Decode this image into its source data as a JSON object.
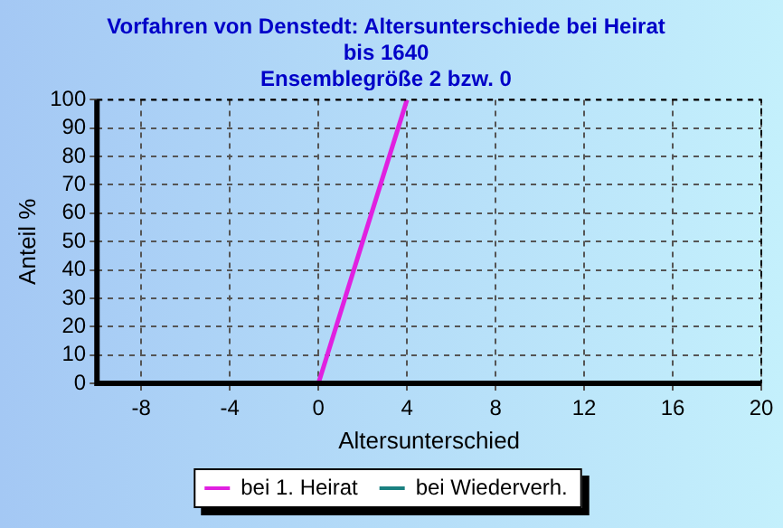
{
  "chart_data": {
    "type": "line",
    "title": "Vorfahren von Denstedt: Altersunterschiede bei Heirat",
    "subtitle": "bis 1640\nEnsemblegröße 2 bzw. 0",
    "xlabel": "Altersunterschied",
    "ylabel": "Anteil %",
    "x": [
      0,
      4
    ],
    "series": [
      {
        "name": "bei 1. Heirat",
        "color": "#e020e0",
        "values": [
          0,
          100
        ]
      },
      {
        "name": "bei Wiederverh.",
        "color": "#1a8080",
        "values": [
          null,
          null
        ]
      }
    ],
    "xlim": [
      -10,
      20
    ],
    "xticks": [
      -8,
      -4,
      0,
      4,
      8,
      12,
      16,
      20
    ],
    "ylim": [
      0,
      100
    ],
    "yticks": [
      0,
      10,
      20,
      30,
      40,
      50,
      60,
      70,
      80,
      90,
      100
    ],
    "grid": true,
    "legend": "bottom",
    "marker": "none",
    "line_style": "solid"
  }
}
